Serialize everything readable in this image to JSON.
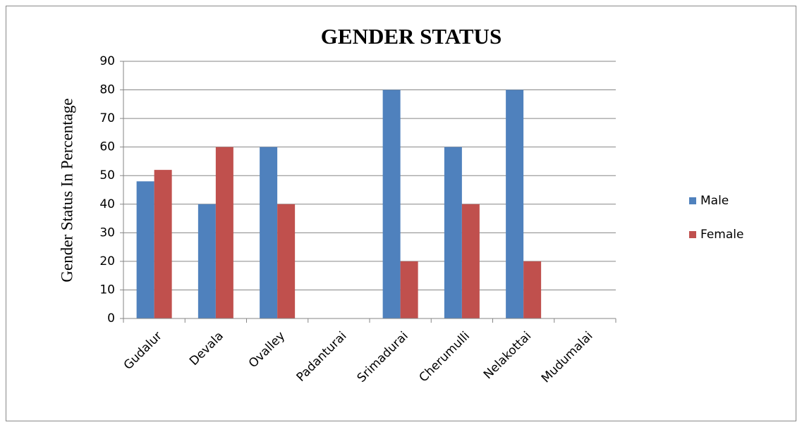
{
  "chart_data": {
    "type": "bar",
    "title": "GENDER STATUS",
    "y_label": "Gender Status In Percentage",
    "categories": [
      "Gudalur",
      "Devala",
      "Ovalley",
      "Padanturai",
      "Srimadurai",
      "Cherumulli",
      "Nelakottai",
      "Mudumalai"
    ],
    "series": [
      {
        "name": "Male",
        "color": "#4f81bd",
        "values": [
          48,
          40,
          60,
          0,
          80,
          60,
          80,
          0
        ]
      },
      {
        "name": "Female",
        "color": "#c0504d",
        "values": [
          52,
          60,
          40,
          0,
          20,
          40,
          20,
          0
        ]
      }
    ],
    "ylim": [
      0,
      90
    ],
    "yticks": [
      0,
      10,
      20,
      30,
      40,
      50,
      60,
      70,
      80,
      90
    ],
    "grid": true,
    "legend": "right"
  }
}
